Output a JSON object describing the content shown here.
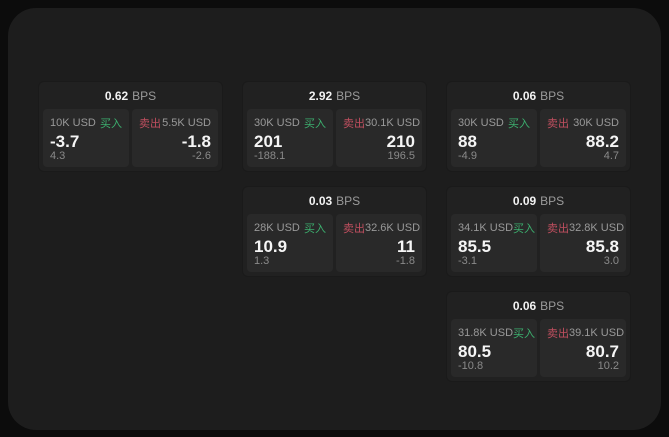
{
  "labels": {
    "bps": "BPS",
    "buy": "买入",
    "sell": "卖出"
  },
  "colors": {
    "buy_green": "#3caf6e",
    "sell_red": "#c04f5f",
    "panel_bg": "#1d1d1d",
    "card_bg": "#212121",
    "tile_bg": "#292929",
    "outer_bg": "#0c0c0c"
  },
  "cards": [
    {
      "bps": "0.62",
      "row": 0,
      "col": 0,
      "buy": {
        "amount": "10K USD",
        "value": "-3.7",
        "sub": "4.3"
      },
      "sell": {
        "amount": "5.5K USD",
        "value": "-1.8",
        "sub": "-2.6"
      }
    },
    {
      "bps": "2.92",
      "row": 0,
      "col": 1,
      "buy": {
        "amount": "30K USD",
        "value": "201",
        "sub": "-188.1"
      },
      "sell": {
        "amount": "30.1K USD",
        "value": "210",
        "sub": "196.5"
      }
    },
    {
      "bps": "0.06",
      "row": 0,
      "col": 2,
      "buy": {
        "amount": "30K USD",
        "value": "88",
        "sub": "-4.9"
      },
      "sell": {
        "amount": "30K USD",
        "value": "88.2",
        "sub": "4.7"
      }
    },
    {
      "bps": "0.03",
      "row": 1,
      "col": 1,
      "buy": {
        "amount": "28K USD",
        "value": "10.9",
        "sub": "1.3"
      },
      "sell": {
        "amount": "32.6K USD",
        "value": "11",
        "sub": "-1.8"
      }
    },
    {
      "bps": "0.09",
      "row": 1,
      "col": 2,
      "buy": {
        "amount": "34.1K USD",
        "value": "85.5",
        "sub": "-3.1"
      },
      "sell": {
        "amount": "32.8K USD",
        "value": "85.8",
        "sub": "3.0"
      }
    },
    {
      "bps": "0.06",
      "row": 2,
      "col": 2,
      "buy": {
        "amount": "31.8K USD",
        "value": "80.5",
        "sub": "-10.8"
      },
      "sell": {
        "amount": "39.1K USD",
        "value": "80.7",
        "sub": "10.2"
      }
    }
  ]
}
